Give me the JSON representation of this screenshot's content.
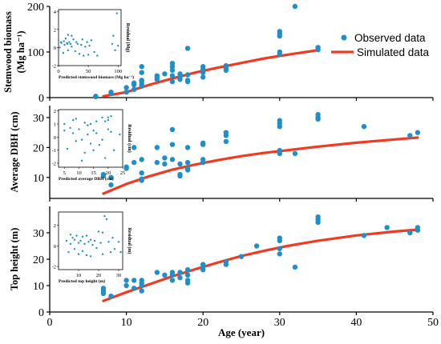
{
  "colors": {
    "observed": "#1f8fc8",
    "simulated": "#f03a22",
    "axis": "#000000"
  },
  "xaxis": {
    "label": "Age (year)",
    "range": [
      0,
      50
    ],
    "ticks": [
      "0",
      "10",
      "20",
      "30",
      "40",
      "50"
    ]
  },
  "legend": {
    "placement": "top-right",
    "observed_label": "Observed data",
    "simulated_label": "Simulated data"
  },
  "chart_data": [
    {
      "type": "scatter",
      "ylabel_line1": "Stemwood biomass",
      "ylabel_line2": "(Mg ha⁻¹)",
      "ylim": [
        0,
        200
      ],
      "yticks": [
        "0",
        "100",
        "200"
      ],
      "observed": [
        [
          6,
          2
        ],
        [
          6,
          3
        ],
        [
          8,
          10
        ],
        [
          8,
          12
        ],
        [
          10,
          12
        ],
        [
          10,
          22
        ],
        [
          11,
          18
        ],
        [
          11,
          28
        ],
        [
          11,
          32
        ],
        [
          12,
          25
        ],
        [
          12,
          30
        ],
        [
          12,
          35
        ],
        [
          12,
          38
        ],
        [
          12,
          55
        ],
        [
          12,
          68
        ],
        [
          14,
          40
        ],
        [
          14,
          45
        ],
        [
          14,
          48
        ],
        [
          15,
          52
        ],
        [
          16,
          35
        ],
        [
          16,
          48
        ],
        [
          16,
          60
        ],
        [
          16,
          68
        ],
        [
          16,
          75
        ],
        [
          17,
          40
        ],
        [
          17,
          46
        ],
        [
          17,
          52
        ],
        [
          18,
          35
        ],
        [
          18,
          38
        ],
        [
          18,
          50
        ],
        [
          18,
          108
        ],
        [
          20,
          45
        ],
        [
          20,
          55
        ],
        [
          20,
          62
        ],
        [
          20,
          68
        ],
        [
          23,
          60
        ],
        [
          23,
          65
        ],
        [
          23,
          70
        ],
        [
          30,
          95
        ],
        [
          30,
          100
        ],
        [
          30,
          135
        ],
        [
          30,
          140
        ],
        [
          30,
          145
        ],
        [
          32,
          200
        ],
        [
          35,
          105
        ],
        [
          35,
          110
        ]
      ],
      "simulated": [
        [
          7,
          3
        ],
        [
          10,
          12
        ],
        [
          13,
          28
        ],
        [
          16,
          42
        ],
        [
          19,
          55
        ],
        [
          22,
          66
        ],
        [
          25,
          76
        ],
        [
          28,
          86
        ],
        [
          31,
          94
        ],
        [
          35,
          104
        ]
      ],
      "inset": {
        "xlabel": "Predicted stemwood biomass (Mg ha⁻¹)",
        "ylabel": "Residual (Mg)",
        "xlim": [
          0,
          105
        ],
        "ylim": [
          -2,
          4.2
        ],
        "xticks": [
          "0",
          "50",
          "100"
        ],
        "yticks": [
          "-2",
          "0",
          "2",
          "4"
        ],
        "points": [
          [
            2,
            0
          ],
          [
            4,
            0.6
          ],
          [
            5,
            0.5
          ],
          [
            8,
            -0.6
          ],
          [
            9,
            0.7
          ],
          [
            10,
            0.3
          ],
          [
            12,
            1.0
          ],
          [
            14,
            0.5
          ],
          [
            15,
            0.4
          ],
          [
            16,
            1.4
          ],
          [
            16,
            -0.3
          ],
          [
            18,
            0.6
          ],
          [
            20,
            0.4
          ],
          [
            22,
            1.3
          ],
          [
            22,
            0.1
          ],
          [
            25,
            0.9
          ],
          [
            28,
            -0.4
          ],
          [
            30,
            0.6
          ],
          [
            32,
            0.4
          ],
          [
            35,
            -0.7
          ],
          [
            38,
            0.3
          ],
          [
            40,
            0.9
          ],
          [
            42,
            -0.9
          ],
          [
            45,
            0.1
          ],
          [
            48,
            0.6
          ],
          [
            50,
            -0.8
          ],
          [
            52,
            0.2
          ],
          [
            55,
            0.8
          ],
          [
            60,
            -0.5
          ],
          [
            65,
            -0.9
          ],
          [
            90,
            0.4
          ],
          [
            92,
            1.3
          ],
          [
            95,
            -0.3
          ],
          [
            98,
            3.8
          ],
          [
            100,
            0.2
          ]
        ]
      }
    },
    {
      "type": "scatter",
      "ylabel_line1": "Average DBH (cm)",
      "ylabel_line2": "",
      "ylim": [
        3,
        34
      ],
      "yticks": [
        "10",
        "20",
        "30"
      ],
      "observed": [
        [
          7,
          10.5
        ],
        [
          7,
          11
        ],
        [
          8,
          7.5
        ],
        [
          8,
          10
        ],
        [
          10,
          13
        ],
        [
          10,
          13.5
        ],
        [
          11,
          15
        ],
        [
          11,
          20
        ],
        [
          12,
          9
        ],
        [
          12,
          9.5
        ],
        [
          12,
          11.5
        ],
        [
          12,
          16
        ],
        [
          14,
          15
        ],
        [
          14,
          20
        ],
        [
          15,
          14.5
        ],
        [
          15,
          16.5
        ],
        [
          16,
          16
        ],
        [
          16,
          21
        ],
        [
          16,
          26
        ],
        [
          17,
          10.5
        ],
        [
          17,
          11
        ],
        [
          17,
          14.5
        ],
        [
          18,
          12.5
        ],
        [
          18,
          13
        ],
        [
          18,
          15
        ],
        [
          18,
          20
        ],
        [
          20,
          15
        ],
        [
          20,
          16
        ],
        [
          20,
          21
        ],
        [
          20,
          21.5
        ],
        [
          23,
          22
        ],
        [
          23,
          24
        ],
        [
          23,
          25
        ],
        [
          30,
          18
        ],
        [
          30,
          19
        ],
        [
          30,
          27
        ],
        [
          30,
          28
        ],
        [
          30,
          29
        ],
        [
          32,
          18
        ],
        [
          35,
          29.5
        ],
        [
          35,
          30
        ],
        [
          35,
          31
        ],
        [
          41,
          27
        ],
        [
          47,
          24
        ],
        [
          48,
          25
        ]
      ],
      "simulated": [
        [
          7,
          4.6
        ],
        [
          10,
          7.8
        ],
        [
          13,
          10.4
        ],
        [
          16,
          12.6
        ],
        [
          19,
          14.3
        ],
        [
          22,
          15.8
        ],
        [
          25,
          17.1
        ],
        [
          28,
          18.2
        ],
        [
          31,
          19.1
        ],
        [
          35,
          20.3
        ],
        [
          40,
          21.6
        ],
        [
          45,
          22.7
        ],
        [
          48,
          23.3
        ]
      ],
      "inset": {
        "xlabel": "Predicted average DBH (cm)",
        "ylabel": "Residual (cm)",
        "xlim": [
          3,
          25
        ],
        "ylim": [
          -2.3,
          2.1
        ],
        "xticks": [
          "5",
          "10",
          "15",
          "20",
          "25"
        ],
        "yticks": [
          "-2",
          "-1",
          "0",
          "1",
          "2"
        ],
        "points": [
          [
            5,
            1.0
          ],
          [
            5,
            0.5
          ],
          [
            6,
            -0.9
          ],
          [
            7,
            0.7
          ],
          [
            8,
            0.3
          ],
          [
            8,
            1.3
          ],
          [
            9,
            -0.3
          ],
          [
            9,
            1.4
          ],
          [
            10,
            0.6
          ],
          [
            11,
            -0.2
          ],
          [
            11,
            -1.8
          ],
          [
            12,
            1.1
          ],
          [
            12,
            -1.2
          ],
          [
            13,
            0.9
          ],
          [
            13,
            0.2
          ],
          [
            14,
            -0.5
          ],
          [
            14,
            1.0
          ],
          [
            15,
            0.5
          ],
          [
            15,
            -1.0
          ],
          [
            16,
            1.2
          ],
          [
            16,
            0.3
          ],
          [
            17,
            -0.6
          ],
          [
            18,
            1.5
          ],
          [
            18,
            -0.2
          ],
          [
            19,
            1.2
          ],
          [
            19,
            -1.6
          ],
          [
            20,
            1.5
          ],
          [
            20,
            1.3
          ],
          [
            20,
            0.6
          ],
          [
            21,
            1.6
          ],
          [
            21,
            0.4
          ],
          [
            22,
            -1.0
          ],
          [
            24,
            0.2
          ]
        ]
      }
    },
    {
      "type": "scatter",
      "ylabel_line1": "Top height (m)",
      "ylabel_line2": "",
      "ylim": [
        0,
        40
      ],
      "yticks": [
        "0",
        "10",
        "20",
        "30"
      ],
      "observed": [
        [
          7,
          7
        ],
        [
          7,
          8
        ],
        [
          7,
          9
        ],
        [
          8,
          6
        ],
        [
          10,
          10
        ],
        [
          10,
          12
        ],
        [
          11,
          9
        ],
        [
          11,
          12
        ],
        [
          12,
          8
        ],
        [
          12,
          10
        ],
        [
          12,
          11
        ],
        [
          12,
          12
        ],
        [
          14,
          15
        ],
        [
          15,
          14
        ],
        [
          16,
          12
        ],
        [
          16,
          14
        ],
        [
          16,
          15
        ],
        [
          17,
          13
        ],
        [
          17,
          15
        ],
        [
          18,
          11
        ],
        [
          18,
          12
        ],
        [
          18,
          14
        ],
        [
          18,
          16
        ],
        [
          20,
          16
        ],
        [
          20,
          17
        ],
        [
          20,
          18
        ],
        [
          23,
          18
        ],
        [
          23,
          19
        ],
        [
          25,
          21
        ],
        [
          27,
          25
        ],
        [
          30,
          22
        ],
        [
          30,
          24
        ],
        [
          30,
          27
        ],
        [
          30,
          28
        ],
        [
          32,
          17
        ],
        [
          35,
          34
        ],
        [
          35,
          35
        ],
        [
          35,
          36
        ],
        [
          41,
          29
        ],
        [
          44,
          32
        ],
        [
          47,
          30
        ],
        [
          48,
          31
        ],
        [
          48,
          32
        ]
      ],
      "simulated": [
        [
          7,
          4.2
        ],
        [
          10,
          7.5
        ],
        [
          13,
          10.5
        ],
        [
          16,
          13.5
        ],
        [
          19,
          16.2
        ],
        [
          22,
          18.8
        ],
        [
          25,
          21.2
        ],
        [
          28,
          23.2
        ],
        [
          31,
          25.0
        ],
        [
          35,
          27.0
        ],
        [
          40,
          29.0
        ],
        [
          45,
          30.5
        ],
        [
          48,
          31.2
        ]
      ],
      "inset": {
        "xlabel": "Predicted top height (m)",
        "ylabel": "Residual (m)",
        "xlim": [
          0,
          32
        ],
        "ylim": [
          -2.3,
          3.3
        ],
        "xticks": [
          "10",
          "20",
          "30"
        ],
        "yticks": [
          "-2",
          "0",
          "2"
        ],
        "points": [
          [
            4,
            0.5
          ],
          [
            5,
            -0.6
          ],
          [
            6,
            1.1
          ],
          [
            6,
            0.2
          ],
          [
            7,
            0.8
          ],
          [
            8,
            -0.3
          ],
          [
            8,
            0.6
          ],
          [
            9,
            1.0
          ],
          [
            10,
            0.3
          ],
          [
            10,
            -0.8
          ],
          [
            11,
            0.5
          ],
          [
            12,
            0.9
          ],
          [
            12,
            -0.5
          ],
          [
            13,
            0.2
          ],
          [
            14,
            1.0
          ],
          [
            14,
            -0.9
          ],
          [
            15,
            0.4
          ],
          [
            16,
            0.6
          ],
          [
            16,
            -1.0
          ],
          [
            17,
            0.1
          ],
          [
            18,
            0.5
          ],
          [
            19,
            -0.2
          ],
          [
            20,
            1.4
          ],
          [
            21,
            0.3
          ],
          [
            22,
            -0.8
          ],
          [
            22,
            1.3
          ],
          [
            23,
            2.9
          ],
          [
            24,
            2.6
          ],
          [
            25,
            0.4
          ],
          [
            26,
            -0.6
          ],
          [
            27,
            0.8
          ],
          [
            28,
            -0.3
          ],
          [
            30,
            0.4
          ],
          [
            31,
            -0.6
          ]
        ]
      }
    }
  ]
}
